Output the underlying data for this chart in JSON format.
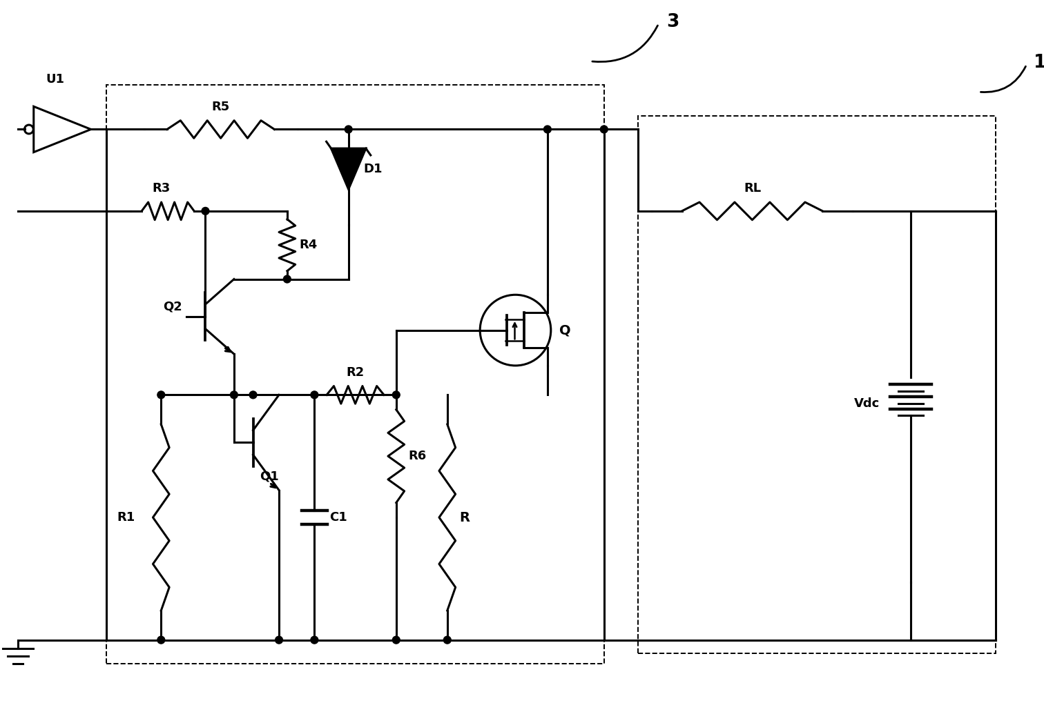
{
  "bg_color": "#ffffff",
  "line_color": "#000000",
  "lw": 2.2,
  "dlw": 1.4,
  "figsize": [
    15.12,
    10.48
  ],
  "dpi": 100,
  "xlim": [
    0,
    15.12
  ],
  "ylim": [
    0,
    10.48
  ]
}
